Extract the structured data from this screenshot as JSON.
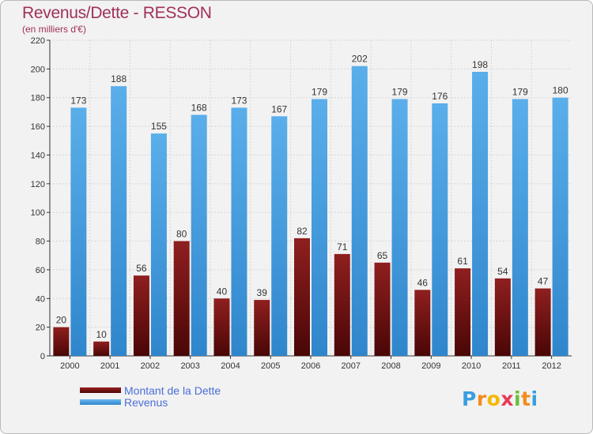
{
  "title": "Revenus/Dette - RESSON",
  "subtitle": "(en milliers d'€)",
  "logo": {
    "letters": [
      {
        "char": "P",
        "color": "#3a9ee0"
      },
      {
        "char": "r",
        "color": "#f28c1e"
      },
      {
        "char": "o",
        "color": "#f5b800"
      },
      {
        "char": "x",
        "color": "#e83a5a"
      },
      {
        "char": "i",
        "color": "#6cbf3a"
      },
      {
        "char": "t",
        "color": "#f28c1e"
      },
      {
        "char": "i",
        "color": "#3a9ee0"
      }
    ]
  },
  "chart_data": {
    "type": "bar",
    "title": "Revenus/Dette - RESSON",
    "subtitle": "(en milliers d'€)",
    "categories": [
      "2000",
      "2001",
      "2002",
      "2003",
      "2004",
      "2005",
      "2006",
      "2007",
      "2008",
      "2009",
      "2010",
      "2011",
      "2012"
    ],
    "series": [
      {
        "name": "Montant de la Dette",
        "color": "#7a1010",
        "values": [
          20,
          10,
          56,
          80,
          40,
          39,
          82,
          71,
          65,
          46,
          61,
          54,
          47
        ]
      },
      {
        "name": "Revenus",
        "color": "#4da6e8",
        "values": [
          173,
          188,
          155,
          168,
          173,
          167,
          179,
          202,
          179,
          176,
          198,
          179,
          180
        ]
      }
    ],
    "ylim": [
      0,
      220
    ],
    "yticks": [
      0,
      20,
      40,
      60,
      80,
      100,
      120,
      140,
      160,
      180,
      200,
      220
    ],
    "grid": true,
    "legend": "bottom-left"
  }
}
